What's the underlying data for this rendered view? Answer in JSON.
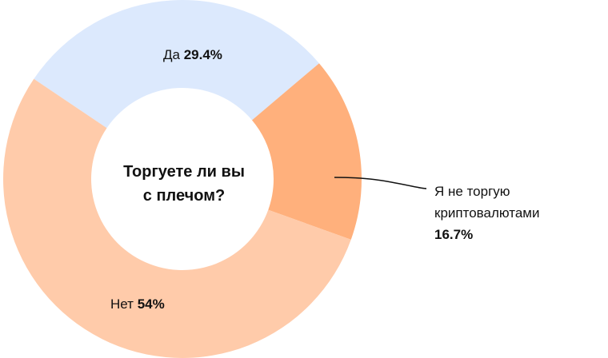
{
  "chart_data": {
    "type": "pie",
    "donut": true,
    "title_line1": "Торгуете ли вы",
    "title_line2": "с плечом?",
    "slices": [
      {
        "label": "Да",
        "value_label": "29.4%",
        "value": 29.4,
        "color": "#dce9fd"
      },
      {
        "label": "Я не торгую",
        "label_line2": "криптовалютами",
        "value_label": "16.7%",
        "value": 16.7,
        "color": "#ffb07c"
      },
      {
        "label": "Нет",
        "value_label": "54%",
        "value": 54,
        "color": "#ffcbaa"
      }
    ]
  }
}
